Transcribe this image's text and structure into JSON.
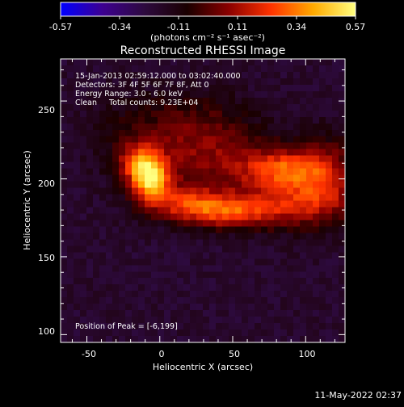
{
  "chart_data": {
    "type": "heatmap",
    "title": "Reconstructed RHESSI Image",
    "xlabel": "Heliocentric X (arcsec)",
    "ylabel": "Heliocentric Y (arcsec)",
    "xlim": [
      -68,
      127
    ],
    "ylim": [
      95,
      277
    ],
    "xticks": [
      -50,
      0,
      50,
      100
    ],
    "yticks": [
      100,
      150,
      200,
      250
    ],
    "colorbar": {
      "min": -0.57,
      "max": 0.57,
      "ticks": [
        "-0.57",
        "-0.34",
        "-0.11",
        "0.11",
        "0.34",
        "0.57"
      ],
      "unit_label": "(photons cm⁻² s⁻¹ asec⁻²)",
      "colormap": [
        "#0000ff",
        "#3d0090",
        "#2d0a3e",
        "#1a0000",
        "#8b0000",
        "#ff3300",
        "#ffaa00",
        "#ffff80"
      ]
    },
    "annotations": [
      "15-Jan-2013 02:59:12.000 to 03:02:40.000",
      "Detectors: 3F 4F 5F 6F 7F 8F, Att 0",
      "Energy Range: 3.0 - 6.0 keV",
      "Clean     Total counts: 9.23E+04"
    ],
    "peak_label": "Position of Peak = [-6,199]",
    "peak": [
      -6,
      199
    ],
    "sources": [
      {
        "x": -6,
        "y": 199,
        "sx": 9,
        "sy": 10,
        "amp": 0.56
      },
      {
        "x": -14,
        "y": 210,
        "sx": 10,
        "sy": 9,
        "amp": 0.34
      },
      {
        "x": 20,
        "y": 184,
        "sx": 20,
        "sy": 8,
        "amp": 0.34
      },
      {
        "x": 50,
        "y": 178,
        "sx": 22,
        "sy": 7,
        "amp": 0.33
      },
      {
        "x": 90,
        "y": 186,
        "sx": 24,
        "sy": 12,
        "amp": 0.3
      },
      {
        "x": 85,
        "y": 207,
        "sx": 18,
        "sy": 8,
        "amp": 0.32
      },
      {
        "x": 40,
        "y": 210,
        "sx": 38,
        "sy": 16,
        "amp": 0.22
      },
      {
        "x": 20,
        "y": 235,
        "sx": 30,
        "sy": 16,
        "amp": 0.17
      },
      {
        "x": 115,
        "y": 200,
        "sx": 15,
        "sy": 18,
        "amp": 0.28
      },
      {
        "x": -30,
        "y": 230,
        "sx": 18,
        "sy": 20,
        "amp": 0.05
      }
    ],
    "background": -0.2
  },
  "timestamp": "11-May-2022 02:37"
}
